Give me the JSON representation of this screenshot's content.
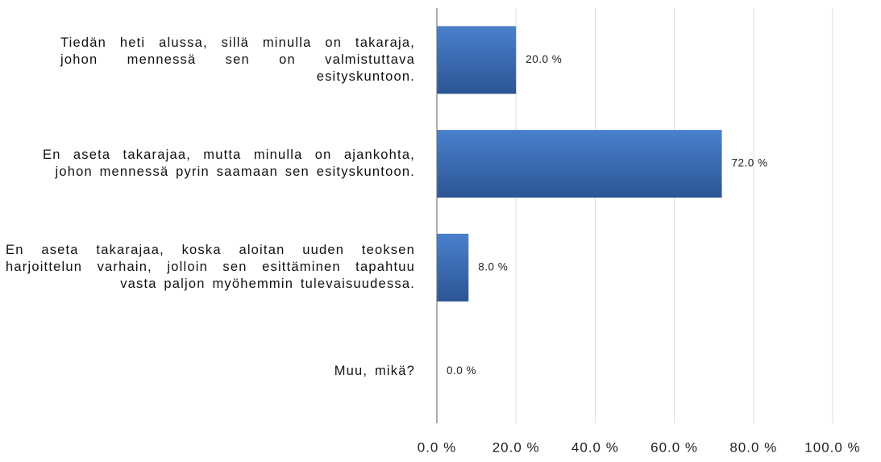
{
  "chart_data": {
    "type": "bar",
    "orientation": "horizontal",
    "categories": [
      "Tiedän heti alussa, sillä minulla on takaraja, johon mennessä sen on valmistuttava esityskuntoon.",
      "En aseta takarajaa, mutta minulla on ajankohta, johon mennessä pyrin saamaan sen esityskuntoon.",
      "En aseta takarajaa, koska aloitan uuden teoksen harjoittelun varhain, jolloin sen esittäminen tapahtuu vasta paljon myöhemmin tulevaisuudessa.",
      "Muu, mikä?"
    ],
    "values": [
      20,
      72,
      8,
      0
    ],
    "value_labels": [
      "20.0 %",
      "72.0 %",
      "8.0 %",
      "0.0 %"
    ],
    "color": "#3d6db3",
    "xlim": [
      0,
      100
    ],
    "xticks": [
      {
        "value": 0,
        "label": "0.0 %"
      },
      {
        "value": 20,
        "label": "20.0 %"
      },
      {
        "value": 40,
        "label": "40.0 %"
      },
      {
        "value": 60,
        "label": "60.0 %"
      },
      {
        "value": 80,
        "label": "80.0 %"
      },
      {
        "value": 100,
        "label": "100.0 %"
      }
    ],
    "grid": true
  }
}
